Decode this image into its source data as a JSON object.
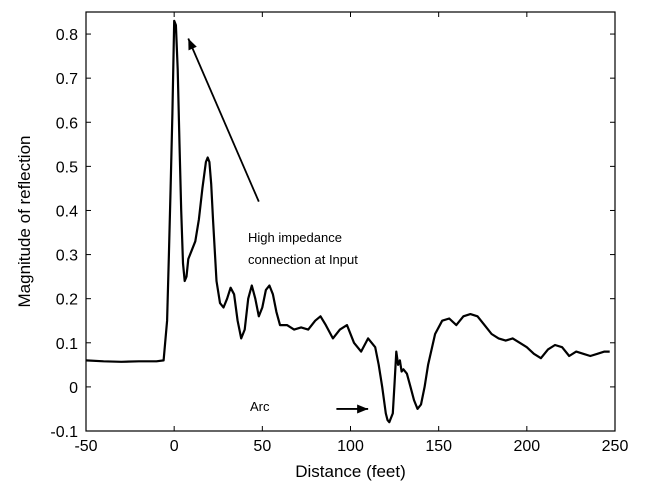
{
  "chart_data": {
    "type": "line",
    "title": "",
    "xlabel": "Distance (feet)",
    "ylabel": "Magnitude of reflection",
    "xlim": [
      -50,
      250
    ],
    "ylim": [
      -0.1,
      0.85
    ],
    "x_ticks": [
      -50,
      0,
      50,
      100,
      150,
      200,
      250
    ],
    "x_tick_labels": [
      "-50",
      "0",
      "50",
      "100",
      "150",
      "200",
      "250"
    ],
    "y_ticks": [
      -0.1,
      0,
      0.1,
      0.2,
      0.3,
      0.4,
      0.5,
      0.6,
      0.7,
      0.8
    ],
    "y_tick_labels": [
      "-0.1",
      "0",
      "0.1",
      "0.2",
      "0.3",
      "0.4",
      "0.5",
      "0.6",
      "0.7",
      "0.8"
    ],
    "grid": false,
    "line_color": "#000000",
    "series": [
      {
        "x": [
          -50,
          -40,
          -30,
          -20,
          -10,
          -6,
          -4,
          -3,
          -2,
          -1,
          0,
          1,
          2,
          3,
          4,
          5,
          6,
          7,
          8,
          10,
          12,
          14,
          16,
          18,
          19,
          20,
          21,
          22,
          24,
          26,
          28,
          30,
          32,
          34,
          36,
          38,
          40,
          42,
          44,
          46,
          48,
          50,
          52,
          54,
          56,
          58,
          60,
          64,
          68,
          72,
          76,
          80,
          83,
          86,
          90,
          94,
          98,
          102,
          106,
          110,
          114,
          116,
          118,
          120,
          121,
          122,
          124,
          125,
          126,
          127,
          128,
          129,
          130,
          132,
          134,
          136,
          138,
          140,
          142,
          144,
          148,
          152,
          156,
          160,
          164,
          168,
          172,
          176,
          180,
          184,
          188,
          192,
          196,
          200,
          204,
          208,
          212,
          216,
          220,
          224,
          228,
          232,
          236,
          240,
          244,
          247
        ],
        "y": [
          0.06,
          0.058,
          0.057,
          0.058,
          0.058,
          0.06,
          0.15,
          0.3,
          0.45,
          0.62,
          0.83,
          0.82,
          0.72,
          0.55,
          0.4,
          0.28,
          0.24,
          0.25,
          0.29,
          0.31,
          0.33,
          0.38,
          0.45,
          0.51,
          0.52,
          0.51,
          0.46,
          0.38,
          0.24,
          0.19,
          0.18,
          0.2,
          0.225,
          0.21,
          0.15,
          0.11,
          0.13,
          0.2,
          0.23,
          0.2,
          0.16,
          0.18,
          0.22,
          0.23,
          0.21,
          0.17,
          0.14,
          0.14,
          0.13,
          0.135,
          0.13,
          0.15,
          0.16,
          0.14,
          0.11,
          0.13,
          0.14,
          0.1,
          0.08,
          0.11,
          0.09,
          0.05,
          0.0,
          -0.06,
          -0.075,
          -0.08,
          -0.06,
          0.01,
          0.08,
          0.05,
          0.06,
          0.035,
          0.04,
          0.03,
          0.0,
          -0.03,
          -0.05,
          -0.04,
          0.0,
          0.05,
          0.12,
          0.15,
          0.155,
          0.14,
          0.16,
          0.165,
          0.16,
          0.14,
          0.12,
          0.11,
          0.105,
          0.11,
          0.1,
          0.09,
          0.075,
          0.065,
          0.085,
          0.095,
          0.09,
          0.07,
          0.08,
          0.075,
          0.07,
          0.075,
          0.08,
          0.08
        ]
      }
    ],
    "annotations": [
      {
        "lines": [
          "High impedance",
          "connection at Input"
        ],
        "arrow_from": [
          48,
          0.42
        ],
        "arrow_to": [
          8,
          0.79
        ]
      },
      {
        "lines": [
          "Arc"
        ],
        "arrow_from": [
          92,
          -0.05
        ],
        "arrow_to": [
          110,
          -0.05
        ]
      }
    ]
  }
}
